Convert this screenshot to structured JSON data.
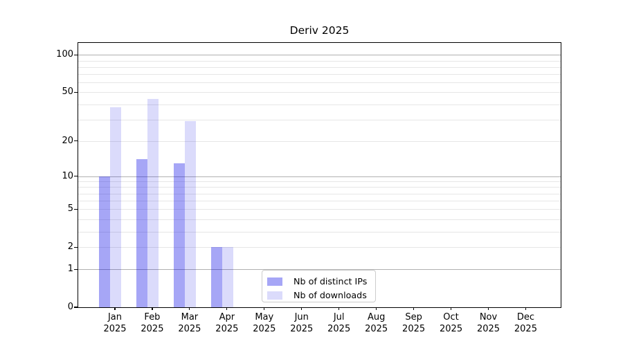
{
  "chart_data": {
    "type": "bar",
    "title": "Deriv 2025",
    "yscale": "log10(value+1)",
    "ylim": [
      0,
      125
    ],
    "grid": true,
    "legend_position": "lower center",
    "y_ticks": [
      0,
      1,
      2,
      5,
      10,
      20,
      50,
      100
    ],
    "y_major_gridlines": [
      1,
      10,
      100
    ],
    "y_minor_gridlines": [
      2,
      3,
      4,
      5,
      6,
      7,
      8,
      9,
      20,
      30,
      40,
      50,
      60,
      70,
      80,
      90
    ],
    "months": [
      {
        "month": "Jan",
        "year": "2025"
      },
      {
        "month": "Feb",
        "year": "2025"
      },
      {
        "month": "Mar",
        "year": "2025"
      },
      {
        "month": "Apr",
        "year": "2025"
      },
      {
        "month": "May",
        "year": "2025"
      },
      {
        "month": "Jun",
        "year": "2025"
      },
      {
        "month": "Jul",
        "year": "2025"
      },
      {
        "month": "Aug",
        "year": "2025"
      },
      {
        "month": "Sep",
        "year": "2025"
      },
      {
        "month": "Oct",
        "year": "2025"
      },
      {
        "month": "Nov",
        "year": "2025"
      },
      {
        "month": "Dec",
        "year": "2025"
      }
    ],
    "series": [
      {
        "name": "Nb of distinct IPs",
        "color": "#0000E659",
        "values": [
          10,
          14,
          13,
          2,
          0,
          0,
          0,
          0,
          0,
          0,
          0,
          0
        ]
      },
      {
        "name": "Nb of downloads",
        "color": "#0000E624",
        "values": [
          38,
          44,
          29,
          2,
          0,
          0,
          0,
          0,
          0,
          0,
          0,
          0
        ]
      }
    ]
  },
  "colors": {
    "major_gridline": "#b0b0b0",
    "minor_gridline": "#e6e6e6",
    "axis": "#000000",
    "background": "#ffffff",
    "legend_border": "#cccccc"
  }
}
